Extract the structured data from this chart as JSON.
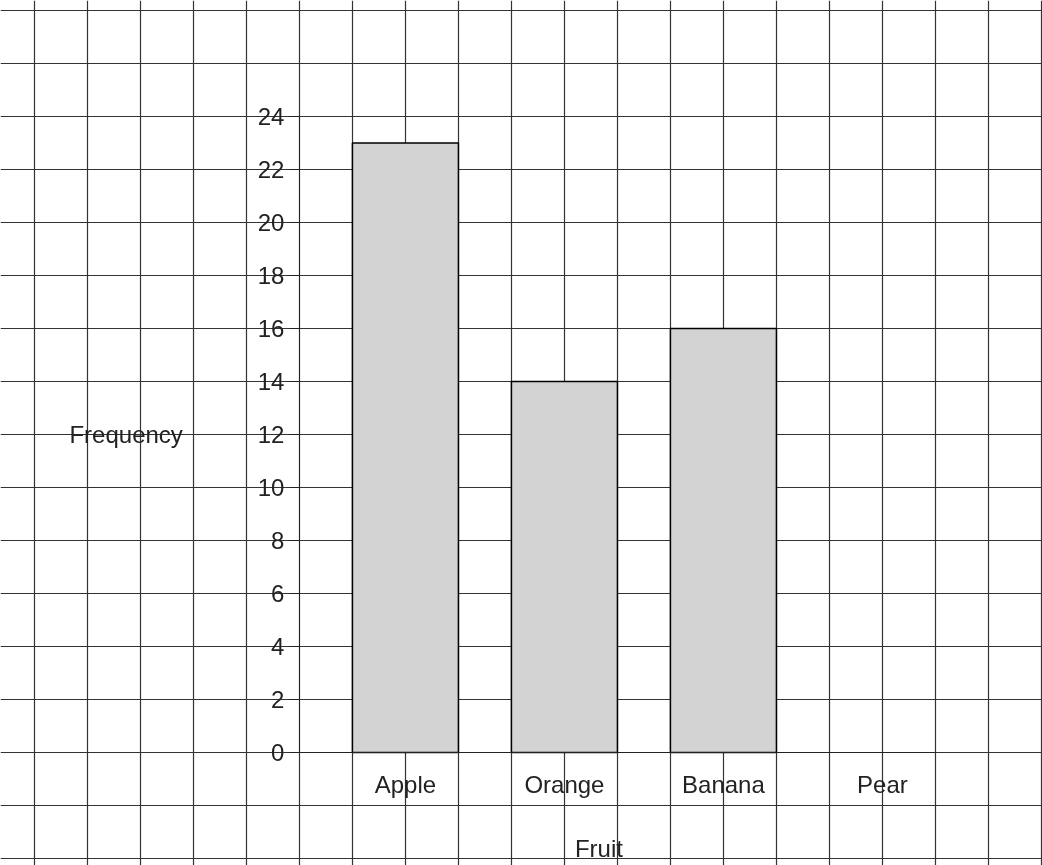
{
  "chart_data": {
    "type": "bar",
    "xlabel": "Fruit",
    "ylabel": "Frequency",
    "categories": [
      "Apple",
      "Orange",
      "Banana",
      "Pear"
    ],
    "values": [
      23,
      14,
      16,
      null
    ],
    "color": "#d3d3d3",
    "ylim": [
      0,
      24
    ],
    "yticks": [
      0,
      2,
      4,
      6,
      8,
      10,
      12,
      14,
      16,
      18,
      20,
      22,
      24
    ],
    "grid": true
  }
}
